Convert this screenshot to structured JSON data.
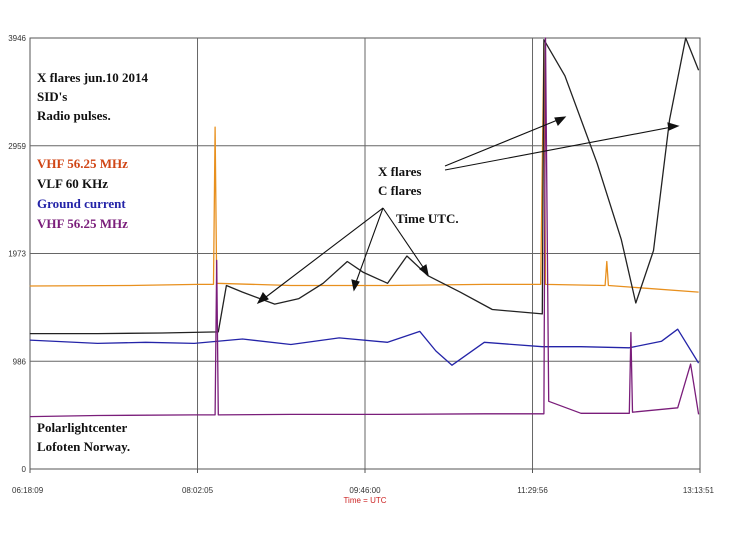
{
  "chart_data": {
    "type": "line",
    "xlabel": "Time = UTC",
    "x_ticks": [
      "06:18:09",
      "08:02:05",
      "09:46:00",
      "11:29:56",
      "13:13:51"
    ],
    "y_ticks": [
      0,
      986,
      1973,
      2959,
      3946
    ],
    "ylim": [
      0,
      3946
    ],
    "grid": true,
    "series": [
      {
        "name": "VHF 56.25 MHz",
        "color": "#e8901e",
        "points": [
          [
            "06:18",
            1675
          ],
          [
            "07:20",
            1680
          ],
          [
            "08:02",
            1690
          ],
          [
            "08:12",
            1690
          ],
          [
            "08:13",
            3130
          ],
          [
            "08:14",
            1700
          ],
          [
            "09:00",
            1680
          ],
          [
            "10:00",
            1680
          ],
          [
            "11:00",
            1690
          ],
          [
            "11:35",
            1690
          ],
          [
            "11:37",
            3900
          ],
          [
            "11:38",
            1690
          ],
          [
            "12:15",
            1680
          ],
          [
            "12:16",
            1900
          ],
          [
            "12:17",
            1680
          ],
          [
            "13:13",
            1620
          ]
        ]
      },
      {
        "name": "VLF 60 KHz",
        "color": "#222222",
        "points": [
          [
            "06:18",
            1240
          ],
          [
            "07:00",
            1240
          ],
          [
            "07:40",
            1245
          ],
          [
            "08:15",
            1255
          ],
          [
            "08:20",
            1680
          ],
          [
            "08:30",
            1620
          ],
          [
            "08:50",
            1510
          ],
          [
            "09:05",
            1560
          ],
          [
            "09:20",
            1700
          ],
          [
            "09:35",
            1900
          ],
          [
            "09:45",
            1800
          ],
          [
            "10:00",
            1700
          ],
          [
            "10:12",
            1950
          ],
          [
            "10:25",
            1770
          ],
          [
            "10:45",
            1620
          ],
          [
            "11:05",
            1460
          ],
          [
            "11:36",
            1420
          ],
          [
            "11:37",
            3930
          ],
          [
            "11:50",
            3600
          ],
          [
            "12:10",
            2800
          ],
          [
            "12:25",
            2100
          ],
          [
            "12:34",
            1520
          ],
          [
            "12:45",
            2000
          ],
          [
            "12:55",
            3200
          ],
          [
            "13:05",
            3946
          ],
          [
            "13:13",
            3650
          ]
        ]
      },
      {
        "name": "Ground current",
        "color": "#2424a8",
        "points": [
          [
            "06:18",
            1180
          ],
          [
            "07:00",
            1150
          ],
          [
            "07:30",
            1160
          ],
          [
            "08:00",
            1150
          ],
          [
            "08:30",
            1190
          ],
          [
            "09:00",
            1140
          ],
          [
            "09:30",
            1200
          ],
          [
            "10:00",
            1160
          ],
          [
            "10:20",
            1260
          ],
          [
            "10:30",
            1080
          ],
          [
            "10:40",
            950
          ],
          [
            "11:00",
            1160
          ],
          [
            "11:36",
            1120
          ],
          [
            "12:00",
            1120
          ],
          [
            "12:30",
            1110
          ],
          [
            "12:50",
            1170
          ],
          [
            "13:00",
            1280
          ],
          [
            "13:13",
            970
          ]
        ]
      },
      {
        "name": "VHF 56.25 MHz",
        "color": "#7a1d7a",
        "points": [
          [
            "06:18",
            480
          ],
          [
            "07:00",
            490
          ],
          [
            "08:00",
            495
          ],
          [
            "08:13",
            495
          ],
          [
            "08:14",
            1910
          ],
          [
            "08:15",
            495
          ],
          [
            "09:00",
            500
          ],
          [
            "10:00",
            500
          ],
          [
            "11:00",
            505
          ],
          [
            "11:37",
            505
          ],
          [
            "11:38",
            3946
          ],
          [
            "11:40",
            620
          ],
          [
            "12:00",
            510
          ],
          [
            "12:30",
            510
          ],
          [
            "12:31",
            1250
          ],
          [
            "12:32",
            520
          ],
          [
            "13:00",
            560
          ],
          [
            "13:08",
            960
          ],
          [
            "13:13",
            500
          ]
        ]
      }
    ],
    "annotations": {
      "title_lines": [
        "X flares jun.10 2014",
        "SID's",
        "Radio pulses."
      ],
      "flare_labels": [
        "X flares",
        "C flares",
        "Time UTC."
      ],
      "footer_lines": [
        "Polarlightcenter",
        "Lofoten Norway."
      ]
    }
  }
}
